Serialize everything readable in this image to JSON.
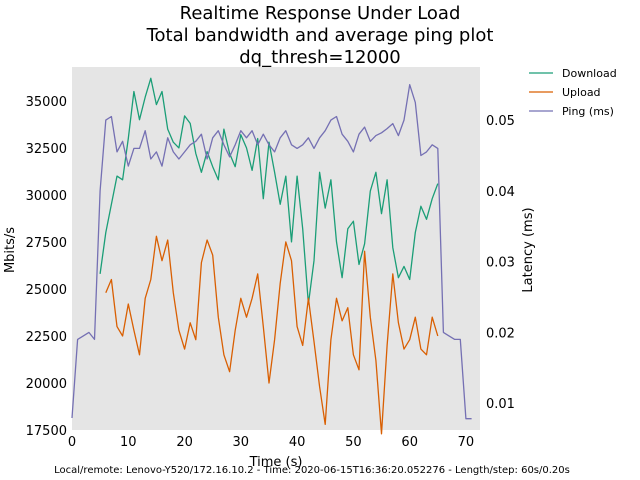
{
  "chart_data": {
    "type": "line",
    "title_lines": [
      "Realtime Response Under Load",
      "Total bandwidth and average ping plot",
      "dq_thresh=12000"
    ],
    "xlabel": "Time (s)",
    "ylabel_left": "Mbits/s",
    "ylabel_right": "Latency (ms)",
    "xlim": [
      0,
      72.5
    ],
    "ylim_left": [
      17500,
      36800
    ],
    "ylim_right": [
      0.0062,
      0.0575
    ],
    "xticks": [
      0,
      10,
      20,
      30,
      40,
      50,
      60,
      70
    ],
    "yticks_left": [
      17500,
      20000,
      22500,
      25000,
      27500,
      30000,
      32500,
      35000
    ],
    "yticks_right": [
      0.01,
      0.02,
      0.03,
      0.04,
      0.05
    ],
    "ytick_labels_left": [
      "17500",
      "20000",
      "22500",
      "25000",
      "27500",
      "30000",
      "32500",
      "35000"
    ],
    "ytick_labels_right": [
      "0.01",
      "0.02",
      "0.03",
      "0.04",
      "0.05"
    ],
    "xtick_labels": [
      "0",
      "10",
      "20",
      "30",
      "40",
      "50",
      "60",
      "70"
    ],
    "grid": false,
    "legend_position": "outside-top-right",
    "series": [
      {
        "name": "Download",
        "axis": "left",
        "color": "#1b9e77",
        "x": [
          5,
          6,
          7,
          8,
          9,
          10,
          11,
          12,
          13,
          14,
          15,
          16,
          17,
          18,
          19,
          20,
          21,
          22,
          23,
          24,
          25,
          26,
          27,
          28,
          29,
          30,
          31,
          32,
          33,
          34,
          35,
          36,
          37,
          38,
          39,
          40,
          41,
          42,
          43,
          44,
          45,
          46,
          47,
          48,
          49,
          50,
          51,
          52,
          53,
          54,
          55,
          56,
          57,
          58,
          59,
          60,
          61,
          62,
          63,
          64,
          65
        ],
        "values": [
          25800,
          28000,
          29500,
          31000,
          30800,
          33000,
          35500,
          34000,
          35200,
          36200,
          34800,
          35500,
          33500,
          32800,
          32500,
          34200,
          33800,
          32200,
          31200,
          32300,
          31500,
          30800,
          33500,
          32200,
          31500,
          33200,
          32500,
          31300,
          33000,
          29800,
          32800,
          31200,
          29500,
          31000,
          27500,
          31000,
          28200,
          24200,
          26500,
          31200,
          29300,
          30800,
          27500,
          25600,
          28200,
          28600,
          26300,
          27400,
          30200,
          31200,
          29000,
          30800,
          27200,
          25600,
          26200,
          25500,
          28000,
          29400,
          28700,
          29800,
          30600
        ]
      },
      {
        "name": "Upload",
        "axis": "left",
        "color": "#d95f02",
        "x": [
          6,
          7,
          8,
          9,
          10,
          11,
          12,
          13,
          14,
          15,
          16,
          17,
          18,
          19,
          20,
          21,
          22,
          23,
          24,
          25,
          26,
          27,
          28,
          29,
          30,
          31,
          32,
          33,
          34,
          35,
          36,
          37,
          38,
          39,
          40,
          41,
          42,
          43,
          44,
          45,
          46,
          47,
          48,
          49,
          50,
          51,
          52,
          53,
          54,
          55,
          56,
          57,
          58,
          59,
          60,
          61,
          62,
          63,
          64,
          65
        ],
        "values": [
          24800,
          25500,
          23000,
          22500,
          24200,
          22800,
          21500,
          24500,
          25500,
          27800,
          26500,
          27600,
          24800,
          22800,
          21800,
          23200,
          22300,
          26400,
          27600,
          26800,
          23500,
          21500,
          20600,
          22800,
          24500,
          23500,
          24500,
          25800,
          23000,
          20000,
          22300,
          25300,
          27500,
          26500,
          23000,
          22000,
          24500,
          22200,
          19800,
          17800,
          22300,
          24500,
          23300,
          24000,
          21500,
          20700,
          27000,
          23500,
          21200,
          17300,
          22000,
          25800,
          23200,
          21800,
          22300,
          23500,
          21800,
          21500,
          23500,
          22500
        ]
      },
      {
        "name": "Ping (ms)",
        "axis": "right",
        "color": "#7570b3",
        "x": [
          0,
          1,
          2,
          3,
          4,
          5,
          6,
          7,
          8,
          9,
          10,
          11,
          12,
          13,
          14,
          15,
          16,
          17,
          18,
          19,
          20,
          21,
          22,
          23,
          24,
          25,
          26,
          27,
          28,
          29,
          30,
          31,
          32,
          33,
          34,
          35,
          36,
          37,
          38,
          39,
          40,
          41,
          42,
          43,
          44,
          45,
          46,
          47,
          48,
          49,
          50,
          51,
          52,
          53,
          54,
          55,
          56,
          57,
          58,
          59,
          60,
          61,
          62,
          63,
          64,
          65,
          66,
          67,
          68,
          69,
          70,
          71
        ],
        "values": [
          0.0079,
          0.019,
          0.0195,
          0.02,
          0.019,
          0.04,
          0.05,
          0.0505,
          0.0455,
          0.047,
          0.0435,
          0.046,
          0.046,
          0.0485,
          0.0445,
          0.0455,
          0.0435,
          0.0475,
          0.0455,
          0.0445,
          0.0455,
          0.0465,
          0.047,
          0.048,
          0.0445,
          0.0475,
          0.0485,
          0.0465,
          0.0448,
          0.0465,
          0.0485,
          0.0475,
          0.0485,
          0.0465,
          0.048,
          0.0465,
          0.0455,
          0.0475,
          0.0485,
          0.0465,
          0.046,
          0.0465,
          0.0475,
          0.046,
          0.0475,
          0.0485,
          0.05,
          0.0505,
          0.048,
          0.047,
          0.0455,
          0.048,
          0.049,
          0.047,
          0.0478,
          0.0482,
          0.0488,
          0.0495,
          0.0478,
          0.05,
          0.055,
          0.0525,
          0.045,
          0.0455,
          0.0465,
          0.046,
          0.02,
          0.0195,
          0.019,
          0.019,
          0.0078,
          0.0078
        ]
      }
    ]
  },
  "footer": "Local/remote: Lenovo-Y520/172.16.10.2 - Time: 2020-06-15T16:36:20.052276 - Length/step: 60s/0.20s",
  "colors": {
    "plot_bg": "#e5e5e5"
  }
}
